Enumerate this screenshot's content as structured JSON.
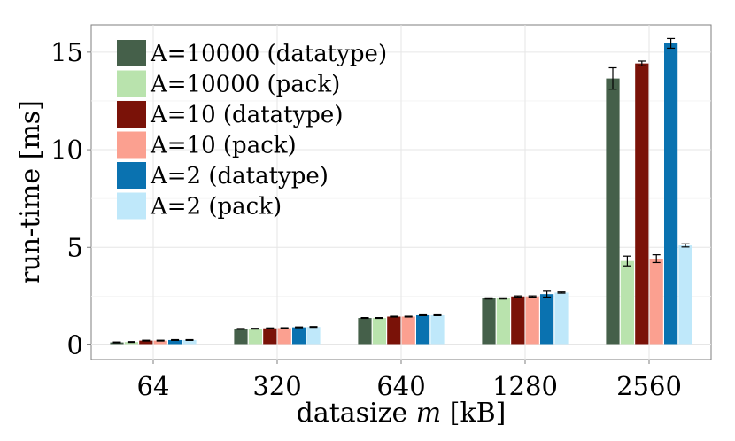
{
  "chart_data": {
    "type": "bar",
    "title": "",
    "xlabel_prefix": "datasize ",
    "xlabel_var": "m",
    "xlabel_suffix": " [kB]",
    "ylabel": "run-time [ms]",
    "ylim": [
      -0.75,
      16.4
    ],
    "yticks": [
      0,
      5,
      10,
      15
    ],
    "ytick_labels": [
      "0",
      "5",
      "10",
      "15"
    ],
    "grid": true,
    "legend_position": "top-left",
    "categories": [
      "64",
      "320",
      "640",
      "1280",
      "2560"
    ],
    "series": [
      {
        "name": "A=10000 (datatype)",
        "color": "#45604a",
        "values": [
          0.13,
          0.82,
          1.38,
          2.38,
          13.65
        ],
        "errors": [
          0.02,
          0.02,
          0.02,
          0.03,
          0.55
        ]
      },
      {
        "name": "A=10000 (pack)",
        "color": "#b9e3ad",
        "values": [
          0.15,
          0.83,
          1.38,
          2.38,
          4.3
        ],
        "errors": [
          0.02,
          0.02,
          0.02,
          0.03,
          0.25
        ]
      },
      {
        "name": "A=10 (datatype)",
        "color": "#7a1208",
        "values": [
          0.22,
          0.85,
          1.45,
          2.48,
          14.42
        ],
        "errors": [
          0.02,
          0.02,
          0.02,
          0.03,
          0.12
        ]
      },
      {
        "name": "A=10 (pack)",
        "color": "#fba090",
        "values": [
          0.22,
          0.86,
          1.45,
          2.48,
          4.42
        ],
        "errors": [
          0.02,
          0.02,
          0.02,
          0.03,
          0.2
        ]
      },
      {
        "name": "A=2 (datatype)",
        "color": "#0a72b0",
        "values": [
          0.25,
          0.9,
          1.52,
          2.6,
          15.45
        ],
        "errors": [
          0.02,
          0.02,
          0.02,
          0.15,
          0.25
        ]
      },
      {
        "name": "A=2 (pack)",
        "color": "#bfe8fa",
        "values": [
          0.25,
          0.92,
          1.52,
          2.68,
          5.1
        ],
        "errors": [
          0.02,
          0.02,
          0.02,
          0.03,
          0.08
        ]
      }
    ]
  }
}
